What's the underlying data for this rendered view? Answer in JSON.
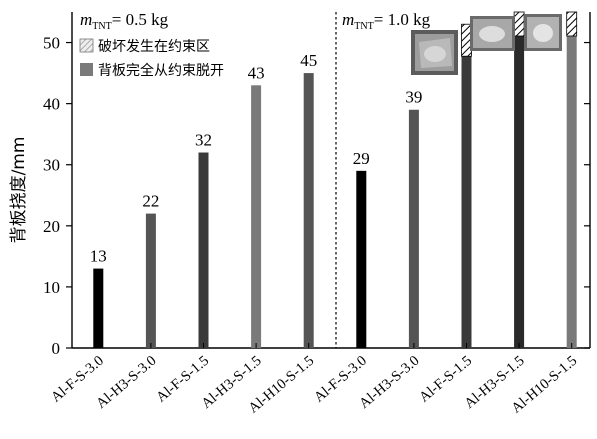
{
  "chart_data": {
    "type": "bar",
    "ylabel": "背板挠度/mm",
    "ylim": [
      0,
      55
    ],
    "yticks": [
      0,
      10,
      20,
      30,
      40,
      50
    ],
    "grid": false,
    "legend_position": "top-left",
    "categories": [
      "Al-F-S-3.0",
      "Al-H3-S-3.0",
      "Al-F-S-1.5",
      "Al-H3-S-1.5",
      "Al-H10-S-1.5",
      "Al-F-S-3.0",
      "Al-H3-S-3.0",
      "Al-F-S-1.5",
      "Al-H3-S-1.5",
      "Al-H10-S-1.5"
    ],
    "values": [
      13,
      22,
      32,
      43,
      45,
      29,
      39,
      53,
      55,
      55
    ],
    "value_labels": [
      "13",
      "22",
      "32",
      "43",
      "45",
      "29",
      "39",
      "",
      "",
      ""
    ],
    "bar_colors": [
      "#000000",
      "#555555",
      "#3a3a3a",
      "#7a7a7a",
      "#555555",
      "#000000",
      "#555555",
      "#3a3a3a",
      "#2a2a2a",
      "#7a7a7a"
    ],
    "states": [
      "",
      "",
      "",
      "",
      "completely-detached",
      "",
      "",
      "failure-at-constraint",
      "failure-at-constraint",
      "failure-at-constraint"
    ],
    "groups": [
      {
        "label_main": "m",
        "label_sub": "TNT",
        "label_rest": "= 0.5 kg"
      },
      {
        "label_main": "m",
        "label_sub": "TNT",
        "label_rest": "= 1.0 kg"
      }
    ],
    "legend": [
      {
        "label": "破坏发生在约束区",
        "pattern": "hatched"
      },
      {
        "label": "背板完全从约束脱开",
        "pattern": "solid",
        "color": "#7a7a7a"
      }
    ]
  }
}
